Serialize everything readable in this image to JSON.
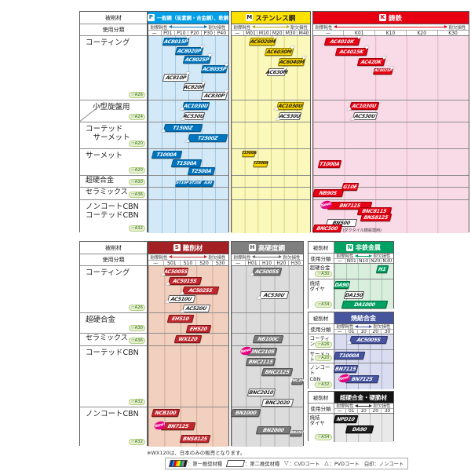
{
  "header": {
    "work_material": "被削材",
    "usage_class": "使用分類",
    "wear_label": "耐摩耗性",
    "fracture_label": "耐欠損性"
  },
  "footnote": "※WX120は、日本のみの販売となります。",
  "legend": {
    "items": [
      {
        "icon": "first-choice-chip",
        "label": "：第一推奨材種"
      },
      {
        "icon": "second-choice-chip",
        "label": "：第二推奨材種"
      },
      {
        "icon": "cvd-triangle",
        "glyph": "▽",
        "label": "：CVDコート"
      },
      {
        "icon": "pvd-triangle",
        "glyph": "△",
        "label": "：PVDコート"
      },
      {
        "icon": "none",
        "label": "白印：ノンコート"
      }
    ]
  },
  "top_categories": [
    {
      "key": "coating",
      "label": "コーティング",
      "ref": "A26"
    },
    {
      "key": "small_lathe",
      "label": "小型旋盤用",
      "ref": "A24",
      "slant": true
    },
    {
      "key": "coated_cermet",
      "label": "コーテッド\n　サーメット",
      "ref": "A20"
    },
    {
      "key": "cermet",
      "label": "サーメット",
      "ref": "A20"
    },
    {
      "key": "carbide",
      "label": "超硬合金",
      "ref": "A30"
    },
    {
      "key": "ceramics",
      "label": "セラミックス",
      "ref": "A36"
    },
    {
      "key": "cbn",
      "label": "ノンコートCBN\nコーテッドCBN",
      "ref": "A32"
    }
  ],
  "bottom_categories": [
    {
      "key": "coating",
      "label": "コーティング",
      "ref": "A26"
    },
    {
      "key": "carbide",
      "label": "超硬合金",
      "ref": "A30"
    },
    {
      "key": "ceramics",
      "label": "セラミックス",
      "ref": "A36"
    },
    {
      "key": "coated_cbn",
      "label": "コーテッドCBN",
      "ref": "A32"
    },
    {
      "key": "noncbn",
      "label": "ノンコートCBN",
      "ref": "A32"
    }
  ],
  "sections": [
    {
      "id": "P",
      "badge": "P",
      "title": "一般鋼（炭素鋼・合金鋼）、軟鋼",
      "header_bg": "#00a0e9",
      "header_text": "#ffffff",
      "badge_color": "#0075c2",
      "body": "#d3e9f7",
      "grid": "#9ec9e2",
      "box": "#0174be",
      "box_text": "#ffffff",
      "box_border": "#025a92",
      "accent": "#0075c2",
      "ticks": [
        "—",
        "P01",
        "P10",
        "P20",
        "P30",
        "P40"
      ],
      "rows": {
        "coating": [
          {
            "label": "AC8015P",
            "start": 1.15,
            "end": 3.05,
            "mark": "cvd"
          },
          {
            "label": "AC8020P",
            "start": 2.1,
            "end": 4.1,
            "mark": "cvd"
          },
          {
            "label": "AC8025P",
            "start": 2.65,
            "end": 4.65,
            "mark": "cvd"
          },
          {
            "label": "AC8035P",
            "start": 4.05,
            "end": 5.95,
            "mark": "cvd"
          },
          {
            "label": "AC810P",
            "start": 1.15,
            "end": 3.05,
            "mark": "cvd",
            "style": "secondary"
          },
          {
            "label": "AC820P",
            "start": 2.65,
            "end": 4.2,
            "mark": "cvd",
            "style": "secondary"
          },
          {
            "label": "AC830P",
            "start": 4.05,
            "end": 5.95,
            "mark": "cvd",
            "style": "secondary"
          }
        ],
        "small_lathe": [
          {
            "label": "AC1030U",
            "start": 2.6,
            "end": 4.55,
            "mark": "pvd"
          },
          {
            "label": "AC530U",
            "start": 2.7,
            "end": 4.2,
            "mark": "pvd",
            "style": "secondary"
          }
        ],
        "coated_cermet": [
          {
            "label": "T1500Z",
            "start": 1.2,
            "end": 4.0,
            "mark": "pvd"
          },
          {
            "label": "T2500Z",
            "start": 3.05,
            "end": 5.95,
            "mark": "pvd"
          }
        ],
        "cermet": [
          {
            "label": "T1000A",
            "start": 0.35,
            "end": 2.5
          },
          {
            "label": "T1500A",
            "start": 1.8,
            "end": 4.0
          },
          {
            "label": "T2500A",
            "start": 3.0,
            "end": 4.95
          }
        ],
        "carbide": [
          {
            "label": "ST10P",
            "start": 2.1,
            "end": 3.05,
            "slot": 0.3,
            "size": "small"
          },
          {
            "label": "ST20E",
            "start": 3.05,
            "end": 4.05,
            "slot": 0.3,
            "size": "small"
          },
          {
            "label": "A30",
            "start": 4.05,
            "end": 4.95,
            "slot": 0.3,
            "size": "small"
          }
        ]
      }
    },
    {
      "id": "M",
      "badge": "M",
      "title": "ステンレス鋼",
      "header_bg": "#ffe100",
      "header_text": "#222222",
      "badge_color": "#222222",
      "body": "#fbf8bb",
      "grid": "#d9d077",
      "box": "#f8d300",
      "box_text": "#222222",
      "box_border": "#8a7a00",
      "accent": "#b7a500",
      "ticks": [
        "—",
        "M01",
        "M10",
        "M20",
        "M30",
        "M40"
      ],
      "rows": {
        "coating": [
          {
            "label": "AC6020M",
            "start": 1.4,
            "end": 3.4,
            "mark": "cvd"
          },
          {
            "label": "AC6030M",
            "start": 2.6,
            "end": 4.7,
            "mark": "cvd"
          },
          {
            "label": "AC6040M",
            "start": 3.6,
            "end": 5.6,
            "mark": "cvd"
          },
          {
            "label": "AC630M",
            "start": 2.8,
            "end": 4.2,
            "mark": "cvd",
            "style": "secondary"
          }
        ],
        "small_lathe": [
          {
            "label": "AC1030U",
            "start": 3.5,
            "end": 5.5,
            "mark": "pvd"
          },
          {
            "label": "AC530U",
            "start": 3.6,
            "end": 5.3,
            "mark": "pvd",
            "style": "secondary"
          }
        ],
        "cermet": [
          {
            "label": "T1500A",
            "start": 0.85,
            "end": 1.8,
            "size": "small"
          },
          {
            "label": "T2500A",
            "start": 1.7,
            "end": 2.75,
            "size": "small"
          }
        ]
      }
    },
    {
      "id": "K",
      "badge": "K",
      "title": "鋳鉄",
      "header_bg": "#e60012",
      "header_text": "#ffffff",
      "badge_color": "#e60012",
      "body": "#f9dbe7",
      "grid": "#e3afc4",
      "box": "#e60012",
      "box_text": "#ffffff",
      "box_border": "#a3000c",
      "accent": "#e60012",
      "ticks": [
        "—",
        "K01",
        "K10",
        "K20",
        "K30"
      ],
      "rows": {
        "coating": [
          {
            "label": "AC4010K",
            "start": 0.4,
            "end": 1.5,
            "mark": "cvd"
          },
          {
            "label": "AC4015K",
            "start": 0.75,
            "end": 1.75,
            "mark": "cvd"
          },
          {
            "label": "AC420K",
            "start": 1.45,
            "end": 2.3,
            "mark": "cvd"
          },
          {
            "label": "AC8025P",
            "start": 1.95,
            "end": 2.55,
            "mark": "cvd",
            "size": "small"
          }
        ],
        "small_lathe": [
          {
            "label": "AC1030U",
            "start": 1.2,
            "end": 2.1,
            "mark": "pvd"
          },
          {
            "label": "AC530U",
            "start": 1.3,
            "end": 2.05,
            "mark": "pvd",
            "style": "secondary"
          }
        ],
        "cermet": [
          {
            "label": "T1000A",
            "start": 0.2,
            "end": 0.9,
            "slot": 0.9
          }
        ],
        "carbide": [
          {
            "label": "G10E",
            "start": 0.95,
            "end": 1.45,
            "slot": 0.5
          }
        ],
        "ceramics": [
          {
            "label": "NB90S",
            "start": 0.0,
            "end": 0.95
          }
        ],
        "cbn": [
          {
            "label": "BN7125",
            "start": 0.5,
            "end": 1.9,
            "new": true
          },
          {
            "label": "BNC8115",
            "start": 1.45,
            "end": 2.5
          },
          {
            "label": "BNS8125",
            "start": 1.55,
            "end": 2.5
          },
          {
            "label": "BN500",
            "start": 0.45,
            "end": 1.4,
            "style": "secondary"
          },
          {
            "label": "BNC500",
            "start": 0.0,
            "end": 0.9,
            "note": "(ダクタイル鋳鉄専用)"
          }
        ]
      }
    },
    {
      "id": "S",
      "badge": "S",
      "title": "難削材",
      "header_bg": "#a32024",
      "header_text": "#ffffff",
      "badge_color": "#a32024",
      "body": "#f2d0bf",
      "grid": "#d4a591",
      "box": "#c1272d",
      "box_text": "#ffffff",
      "box_border": "#801216",
      "accent": "#c1272d",
      "ticks": [
        "—",
        "S01",
        "S10",
        "S20",
        "S30"
      ],
      "rows": {
        "coating": [
          {
            "label": "AC5005S",
            "start": 1.0,
            "end": 2.45,
            "mark": "pvd"
          },
          {
            "label": "AC5015S",
            "start": 1.3,
            "end": 3.3,
            "mark": "pvd"
          },
          {
            "label": "AC5025S",
            "start": 2.2,
            "end": 4.4,
            "mark": "pvd"
          },
          {
            "label": "AC510U",
            "start": 1.25,
            "end": 2.9,
            "mark": "pvd",
            "style": "secondary"
          },
          {
            "label": "AC520U",
            "start": 2.2,
            "end": 3.85,
            "mark": "pvd",
            "style": "secondary"
          }
        ],
        "carbide": [
          {
            "label": "EH510",
            "start": 1.25,
            "end": 2.8
          },
          {
            "label": "EH520",
            "start": 2.45,
            "end": 3.9
          }
        ],
        "ceramics": [
          {
            "label": "WX120",
            "start": 1.7,
            "end": 3.3
          }
        ],
        "noncbn": [
          {
            "label": "NCB100",
            "start": 0.25,
            "end": 1.9
          },
          {
            "label": "BN7125",
            "start": 0.85,
            "end": 2.9,
            "new": true,
            "slot": 1.3
          },
          {
            "label": "BNS8125",
            "start": 2.05,
            "end": 3.85,
            "slot": 2.5
          }
        ]
      }
    },
    {
      "id": "H",
      "badge": "H",
      "title": "高硬度鋼",
      "header_bg": "#7f7f7f",
      "header_text": "#ffffff",
      "badge_color": "#555555",
      "body": "#dcdcdc",
      "grid": "#b0b0b0",
      "box": "#7a7a7a",
      "box_text": "#ffffff",
      "box_border": "#4f4f4f",
      "accent": "#666666",
      "ticks": [
        "—",
        "H01",
        "H10",
        "H20",
        "H30"
      ],
      "rows": {
        "coating": [
          {
            "label": "AC5005S",
            "start": 1.5,
            "end": 3.5,
            "mark": "pvd"
          },
          {
            "label": "AC530U",
            "start": 2.0,
            "end": 4.0,
            "mark": "pvd",
            "style": "secondary",
            "slot": 2.3
          }
        ],
        "ceramics": [
          {
            "label": "NB100C",
            "start": 1.55,
            "end": 3.6
          }
        ],
        "coated_cbn": [
          {
            "label": "BNC2105",
            "start": 1.2,
            "end": 3.2,
            "new": true
          },
          {
            "label": "BNC2115",
            "start": 1.05,
            "end": 3.05
          },
          {
            "label": "BNC2125",
            "start": 2.15,
            "end": 4.25
          },
          {
            "label": "BNC300",
            "start": 4.25,
            "end": 5.0,
            "size": "small"
          },
          {
            "label": "BNC2010",
            "start": 1.2,
            "end": 3.05,
            "style": "secondary"
          },
          {
            "label": "BNC2020",
            "start": 2.15,
            "end": 4.3,
            "style": "secondary"
          }
        ],
        "noncbn": [
          {
            "label": "BN1000",
            "start": 0.0,
            "end": 2.0
          },
          {
            "label": "BN2000",
            "start": 1.8,
            "end": 4.15,
            "slot": 1.7
          },
          {
            "label": "BN350",
            "start": 4.15,
            "end": 5.0,
            "size": "small",
            "slot": 2.1
          }
        ]
      }
    },
    {
      "id": "N",
      "badge": "N",
      "title": "非鉄金属",
      "header_bg": "#00a263",
      "header_text": "#ffffff",
      "badge_color": "#00a263",
      "body": "#d9eedd",
      "grid": "#a2cdb0",
      "box": "#00a263",
      "box_text": "#ffffff",
      "box_border": "#006b41",
      "accent": "#00a263",
      "ticks": [
        "—",
        "N01",
        "N10",
        "N20",
        "N30"
      ],
      "row_list": [
        {
          "label": "超硬合金",
          "ref": "A30",
          "items": [
            {
              "label": "H1",
              "start": 3.6,
              "end": 4.5
            }
          ]
        },
        {
          "label": "焼結\nダイヤ",
          "ref": "A34",
          "items": [
            {
              "label": "DA90",
              "start": 0.0,
              "end": 1.25
            },
            {
              "label": "DA150",
              "start": 0.9,
              "end": 2.5,
              "style": "secondary"
            },
            {
              "label": "DA1000",
              "start": 0.7,
              "end": 4.5
            }
          ]
        }
      ]
    },
    {
      "id": "SINTER",
      "title": "焼結合金",
      "header_bg": "#47549e",
      "header_text": "#ffffff",
      "body": "#dadcf0",
      "grid": "#a8adcf",
      "box": "#47549e",
      "box_text": "#ffffff",
      "box_border": "#2c3670",
      "accent": "#47549e",
      "ticks": [
        "—",
        "01",
        "10",
        "20",
        "30"
      ],
      "row_list": [
        {
          "label": "コーティング",
          "ref": "A26",
          "items": [
            {
              "label": "AC5005S",
              "start": 1.35,
              "end": 4.5,
              "mark": "pvd"
            }
          ]
        },
        {
          "label": "サーメット",
          "ref": "A20",
          "items": [
            {
              "label": "T1000A",
              "start": 0.0,
              "end": 2.5
            }
          ]
        },
        {
          "label": "ノンコート\nCBN",
          "ref": "A32",
          "items": [
            {
              "label": "BN7115",
              "start": 0.0,
              "end": 1.9
            },
            {
              "label": "BN7125",
              "start": 1.0,
              "end": 3.7,
              "new": true
            }
          ]
        }
      ]
    },
    {
      "id": "HARD",
      "title": "超硬合金・硬脆材",
      "header_bg": "#141414",
      "header_text": "#ffffff",
      "body": "#e9e9e9",
      "grid": "#bdbdbd",
      "box": "#1f1f1f",
      "box_text": "#ffffff",
      "box_border": "#000000",
      "accent": "#333333",
      "ticks": [
        "—",
        "01",
        "10",
        "20",
        "30"
      ],
      "row_list": [
        {
          "label": "焼結\nダイヤ",
          "ref": "A34",
          "items": [
            {
              "label": "NPD10",
              "start": 0.0,
              "end": 1.9
            },
            {
              "label": "DA90",
              "start": 1.05,
              "end": 3.3
            }
          ]
        }
      ]
    }
  ]
}
